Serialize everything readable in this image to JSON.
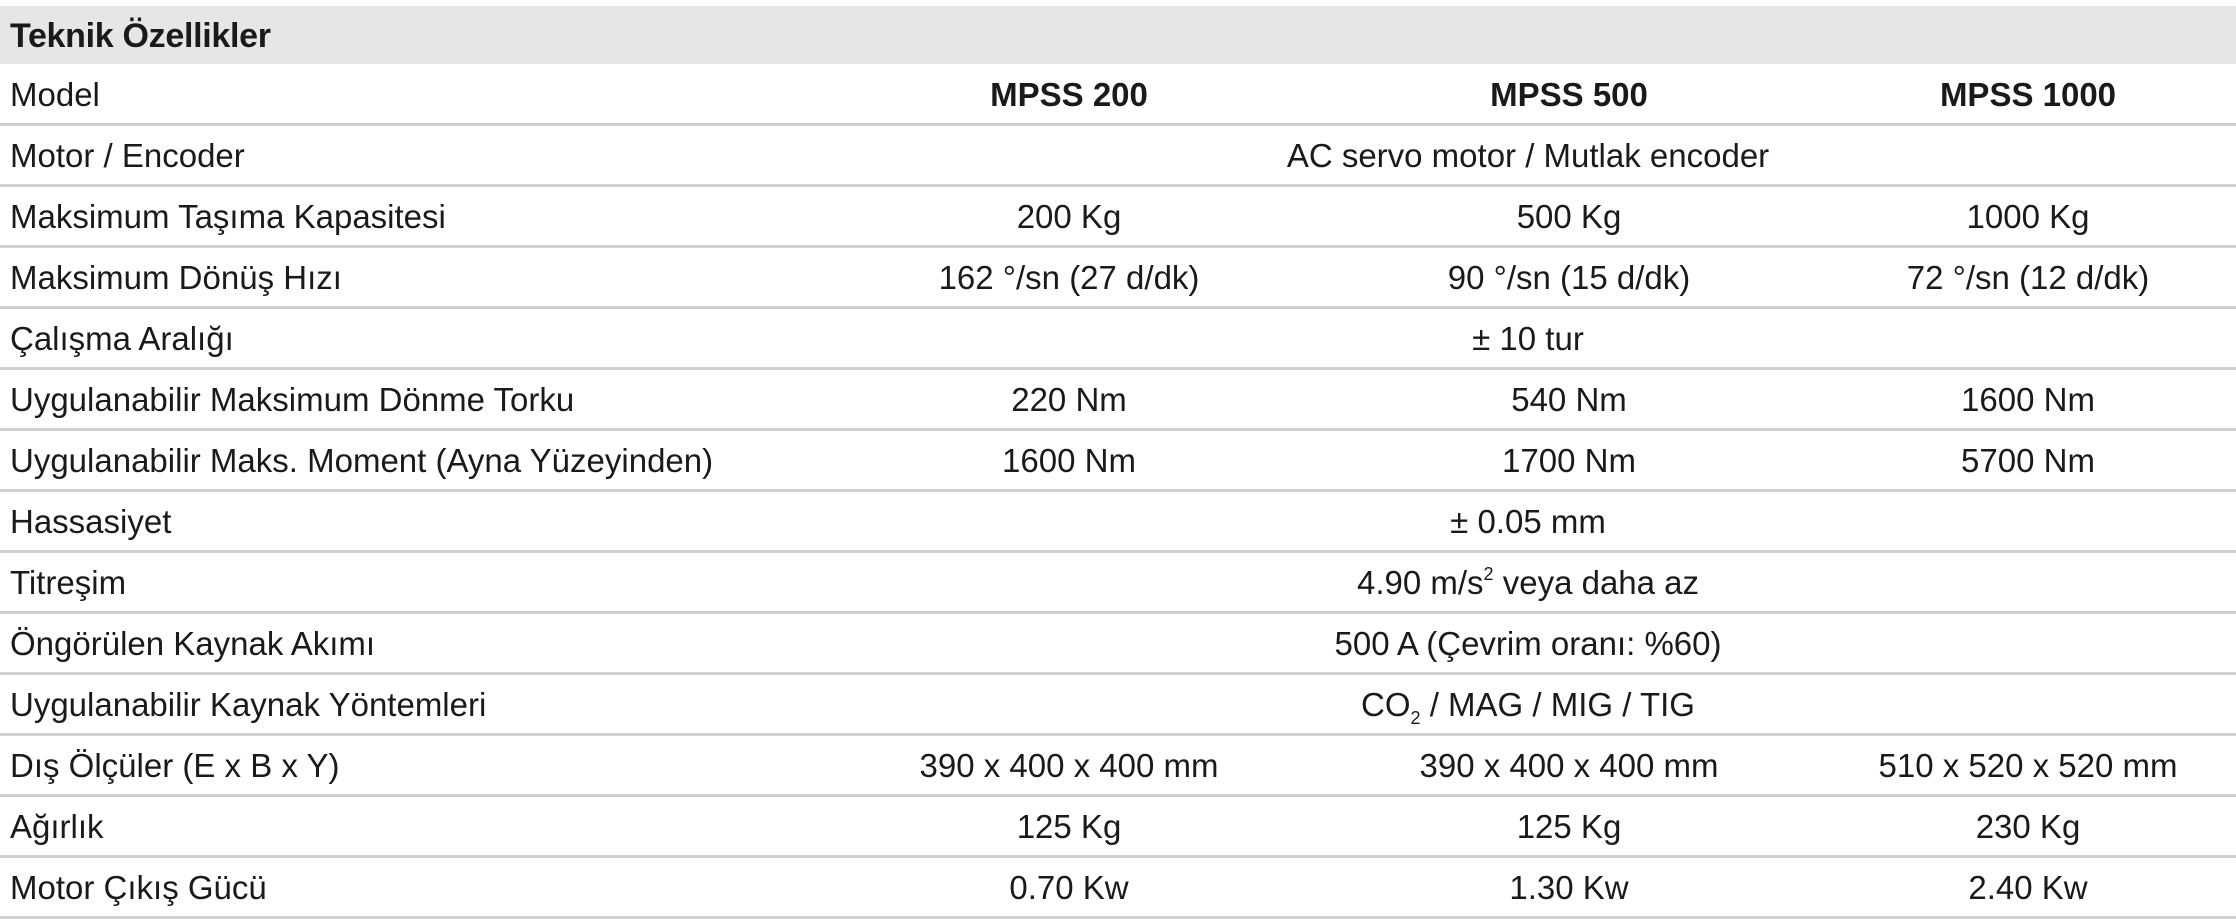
{
  "title": "Teknik Özellikler",
  "header": {
    "label": "Model",
    "models": [
      "MPSS 200",
      "MPSS 500",
      "MPSS 1000"
    ]
  },
  "rows": {
    "motor": {
      "label": "Motor / Encoder",
      "value": "AC servo motor / Mutlak encoder"
    },
    "capacity": {
      "label": "Maksimum Taşıma Kapasitesi",
      "values": [
        "200 Kg",
        "500 Kg",
        "1000 Kg"
      ]
    },
    "speed": {
      "label": "Maksimum Dönüş Hızı",
      "values": [
        "162 °/sn (27 d/dk)",
        "90 °/sn (15 d/dk)",
        "72 °/sn (12 d/dk)"
      ]
    },
    "range": {
      "label": "Çalışma Aralığı",
      "value": "± 10 tur"
    },
    "torque": {
      "label": "Uygulanabilir Maksimum Dönme Torku",
      "values": [
        "220 Nm",
        "540 Nm",
        "1600 Nm"
      ]
    },
    "moment": {
      "label": "Uygulanabilir Maks. Moment (Ayna Yüzeyinden)",
      "values": [
        "1600 Nm",
        "1700 Nm",
        "5700 Nm"
      ]
    },
    "precision": {
      "label": "Hassasiyet",
      "value": "± 0.05 mm"
    },
    "vibration": {
      "label": "Titreşim",
      "value_prefix": "4.90 m/s",
      "value_sup": "2",
      "value_suffix": " veya daha az"
    },
    "current": {
      "label": "Öngörülen Kaynak Akımı",
      "value": "500 A (Çevrim oranı: %60)"
    },
    "methods": {
      "label": "Uygulanabilir Kaynak Yöntemleri",
      "value_prefix": "CO",
      "value_sub": "2",
      "value_suffix": " / MAG / MIG / TIG"
    },
    "dimensions": {
      "label": "Dış Ölçüler (E x B x Y)",
      "values": [
        "390 x 400 x 400 mm",
        "390 x 400 x 400 mm",
        "510 x 520 x 520 mm"
      ]
    },
    "weight": {
      "label": "Ağırlık",
      "values": [
        "125 Kg",
        "125 Kg",
        "230 Kg"
      ]
    },
    "power": {
      "label": "Motor Çıkış Gücü",
      "values": [
        "0.70 Kw",
        "1.30 Kw",
        "2.40 Kw"
      ]
    }
  }
}
